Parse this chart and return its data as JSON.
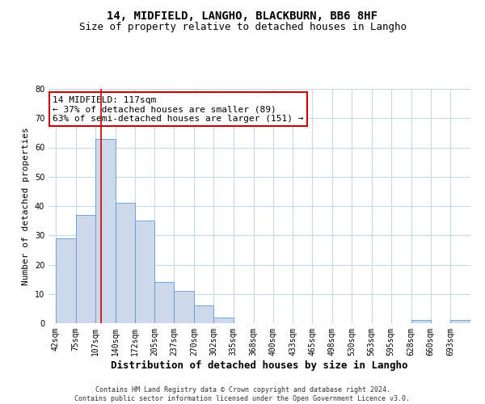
{
  "title1": "14, MIDFIELD, LANGHO, BLACKBURN, BB6 8HF",
  "title2": "Size of property relative to detached houses in Langho",
  "xlabel": "Distribution of detached houses by size in Langho",
  "ylabel": "Number of detached properties",
  "footnote": "Contains HM Land Registry data © Crown copyright and database right 2024.\nContains public sector information licensed under the Open Government Licence v3.0.",
  "bin_labels": [
    "42sqm",
    "75sqm",
    "107sqm",
    "140sqm",
    "172sqm",
    "205sqm",
    "237sqm",
    "270sqm",
    "302sqm",
    "335sqm",
    "368sqm",
    "400sqm",
    "433sqm",
    "465sqm",
    "498sqm",
    "530sqm",
    "563sqm",
    "595sqm",
    "628sqm",
    "660sqm",
    "693sqm"
  ],
  "bin_edges": [
    42,
    75,
    107,
    140,
    172,
    205,
    237,
    270,
    302,
    335,
    368,
    400,
    433,
    465,
    498,
    530,
    563,
    595,
    628,
    660,
    693,
    726
  ],
  "bar_heights": [
    29,
    37,
    63,
    41,
    35,
    14,
    11,
    6,
    2,
    0,
    0,
    0,
    0,
    0,
    0,
    0,
    0,
    0,
    1,
    0,
    1
  ],
  "bar_facecolor": "#cdd9ea",
  "bar_edgecolor": "#6699cc",
  "vline_x": 117,
  "vline_color": "#cc0000",
  "annotation_text": "14 MIDFIELD: 117sqm\n← 37% of detached houses are smaller (89)\n63% of semi-detached houses are larger (151) →",
  "annotation_box_edgecolor": "#cc0000",
  "ylim": [
    0,
    80
  ],
  "yticks": [
    0,
    10,
    20,
    30,
    40,
    50,
    60,
    70,
    80
  ],
  "xlim_left": 30,
  "xlim_right": 726,
  "bg_color": "#ffffff",
  "grid_color": "#c8d8e8",
  "title_fontsize": 10,
  "subtitle_fontsize": 9,
  "ylabel_fontsize": 8,
  "tick_fontsize": 7,
  "annotation_fontsize": 8,
  "xlabel_fontsize": 9,
  "footnote_fontsize": 6
}
